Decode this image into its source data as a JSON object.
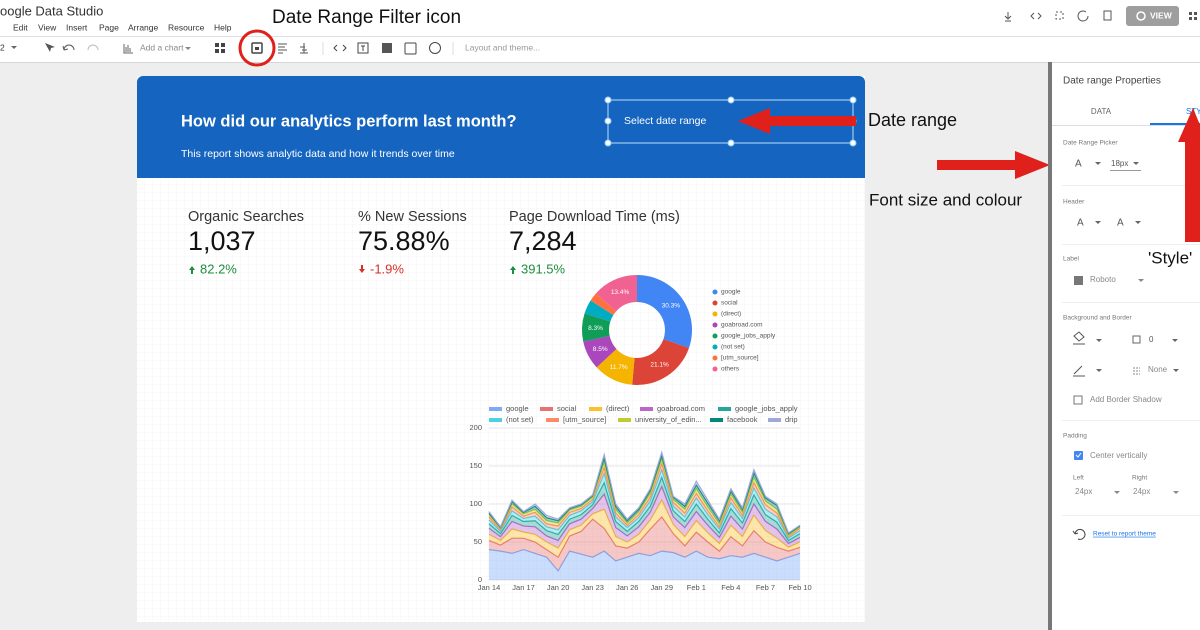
{
  "app": {
    "title": "oogle Data Studio",
    "menu": [
      "Edit",
      "View",
      "Insert",
      "Page",
      "Arrange",
      "Resource",
      "Help"
    ],
    "page": "2",
    "add_chart": "Add a chart",
    "layout_theme": "Layout and theme...",
    "view_button": "VIEW"
  },
  "annotations": {
    "icon_note": "Date Range Filter icon",
    "date_range": "Date range",
    "font_note": "Font size and colour",
    "style_note": "'Style'"
  },
  "report": {
    "title": "How did our analytics perform last month?",
    "subtitle": "This report shows analytic data and how it trends over time",
    "date_control": "Select date range",
    "scorecards": [
      {
        "label": "Organic Searches",
        "value": "1,037",
        "change": "82.2%",
        "direction": "up"
      },
      {
        "label": "% New Sessions",
        "value": "75.88%",
        "change": "-1.9%",
        "direction": "down"
      },
      {
        "label": "Page Download Time (ms)",
        "value": "7,284",
        "change": "391.5%",
        "direction": "up"
      }
    ]
  },
  "chart_data": [
    {
      "type": "pie",
      "donut": true,
      "categories": [
        "google",
        "social",
        "(direct)",
        "goabroad.com",
        "google_jobs_apply",
        "(not set)",
        "[utm_source]",
        "others"
      ],
      "values": [
        30.3,
        21.1,
        11.7,
        8.5,
        8.3,
        4.1,
        2.6,
        13.4
      ],
      "value_labels": [
        "30.3%",
        "21.1%",
        "11.7%",
        "8.5%",
        "8.3%",
        null,
        null,
        "13.4%"
      ],
      "colors": [
        "#4285f4",
        "#db4437",
        "#f4b400",
        "#ab47bc",
        "#0f9d58",
        "#00acc1",
        "#ff7043",
        "#f06292"
      ]
    },
    {
      "type": "area",
      "stacked": true,
      "grid": true,
      "categories": [
        "Jan 14",
        null,
        null,
        "Jan 17",
        null,
        null,
        "Jan 20",
        null,
        null,
        "Jan 23",
        null,
        null,
        "Jan 26",
        null,
        null,
        "Jan 29",
        null,
        null,
        "Feb 1",
        null,
        null,
        "Feb 4",
        null,
        null,
        "Feb 7",
        null,
        null,
        "Feb 10"
      ],
      "ylim": [
        0,
        200
      ],
      "yticks": [
        0,
        50,
        100,
        150,
        200
      ],
      "series": [
        {
          "name": "google",
          "color": "#7baaf7",
          "values": [
            40,
            38,
            35,
            40,
            35,
            30,
            12,
            38,
            34,
            30,
            38,
            25,
            30,
            35,
            32,
            38,
            36,
            30,
            38,
            30,
            28,
            32,
            30,
            35,
            30,
            25,
            30,
            35
          ]
        },
        {
          "name": "social",
          "color": "#e57373",
          "values": [
            12,
            8,
            20,
            15,
            15,
            10,
            18,
            20,
            30,
            50,
            30,
            20,
            12,
            15,
            35,
            45,
            25,
            15,
            25,
            20,
            10,
            25,
            15,
            30,
            20,
            18,
            8,
            8
          ]
        },
        {
          "name": "(direct)",
          "color": "#fbc02d",
          "values": [
            8,
            6,
            12,
            8,
            10,
            10,
            12,
            8,
            8,
            7,
            25,
            12,
            8,
            10,
            12,
            22,
            12,
            12,
            15,
            12,
            10,
            15,
            12,
            20,
            15,
            12,
            5,
            7
          ]
        },
        {
          "name": "goabroad.com",
          "color": "#ba68c8",
          "values": [
            8,
            5,
            10,
            8,
            10,
            8,
            10,
            8,
            8,
            7,
            20,
            12,
            8,
            10,
            10,
            18,
            10,
            12,
            12,
            10,
            8,
            12,
            10,
            15,
            12,
            12,
            5,
            6
          ]
        },
        {
          "name": "google_jobs_apply",
          "color": "#26a69a",
          "values": [
            6,
            4,
            8,
            6,
            8,
            7,
            8,
            6,
            6,
            5,
            15,
            8,
            6,
            7,
            8,
            12,
            8,
            8,
            10,
            8,
            6,
            10,
            8,
            12,
            9,
            9,
            4,
            5
          ]
        },
        {
          "name": "(not set)",
          "color": "#4dd0e1",
          "values": [
            5,
            3,
            6,
            4,
            6,
            5,
            6,
            5,
            5,
            4,
            12,
            6,
            5,
            5,
            7,
            10,
            6,
            6,
            8,
            6,
            5,
            8,
            6,
            9,
            7,
            7,
            3,
            4
          ]
        },
        {
          "name": "[utm_source]",
          "color": "#ff8a65",
          "values": [
            4,
            2,
            5,
            3,
            5,
            4,
            5,
            4,
            3,
            3,
            8,
            5,
            3,
            4,
            5,
            8,
            5,
            5,
            6,
            5,
            3,
            6,
            4,
            7,
            6,
            5,
            2,
            3
          ]
        },
        {
          "name": "university_of_edin...",
          "color": "#c0ca33",
          "values": [
            3,
            2,
            4,
            3,
            4,
            4,
            4,
            3,
            3,
            3,
            7,
            5,
            3,
            4,
            5,
            6,
            4,
            5,
            6,
            5,
            4,
            5,
            4,
            7,
            5,
            5,
            2,
            2
          ]
        },
        {
          "name": "facebook",
          "color": "#00897b",
          "values": [
            2,
            1,
            3,
            2,
            4,
            4,
            3,
            2,
            2,
            2,
            6,
            4,
            3,
            3,
            4,
            5,
            3,
            4,
            5,
            5,
            4,
            4,
            4,
            6,
            4,
            5,
            2,
            1
          ]
        },
        {
          "name": "drip",
          "color": "#9fa8da",
          "values": [
            2,
            1,
            2,
            1,
            3,
            3,
            2,
            1,
            1,
            1,
            4,
            3,
            2,
            2,
            2,
            4,
            1,
            3,
            5,
            4,
            2,
            3,
            2,
            4,
            2,
            2,
            1,
            1
          ]
        }
      ]
    }
  ],
  "panel": {
    "title": "Date range Properties",
    "tab_data": "DATA",
    "tab_style": "STY",
    "picker_heading": "Date Range Picker",
    "font_glyph": "A",
    "font_size": "18px",
    "header_heading": "Header",
    "label_heading": "Label",
    "label_font": "Roboto",
    "bg_heading": "Background and Border",
    "border_width": "0",
    "border_style": "None",
    "shadow": "Add Border Shadow",
    "padding_heading": "Padding",
    "center": "Center vertically",
    "left": "Left",
    "right": "Right",
    "left_value": "24px",
    "right_value": "24px",
    "reset": "Reset to report theme"
  }
}
